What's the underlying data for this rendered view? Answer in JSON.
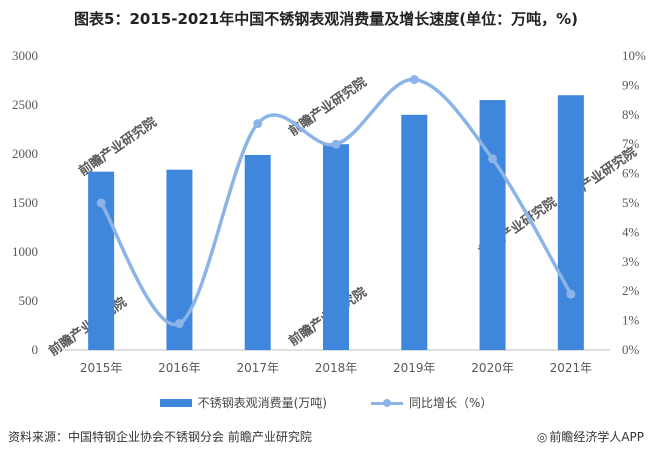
{
  "title": "图表5：2015-2021年中国不锈钢表观消费量及增长速度(单位：万吨，%)",
  "source": "资料来源：中国特钢企业协会不锈钢分会 前瞻产业研究院",
  "credit": "前瞻经济学人APP",
  "watermark": "前瞻产业研究院",
  "chart_data": {
    "type": "bar",
    "categories": [
      "2015年",
      "2016年",
      "2017年",
      "2018年",
      "2019年",
      "2020年",
      "2021年"
    ],
    "series": [
      {
        "name": "不锈钢表观消费量(万吨)",
        "type": "bar",
        "axis": "left",
        "color": "#3f87dd",
        "values": [
          1820,
          1840,
          1990,
          2100,
          2400,
          2550,
          2600
        ]
      },
      {
        "name": "同比增长（%）",
        "type": "line",
        "axis": "right",
        "color": "#8cb4e6",
        "values": [
          5.0,
          0.9,
          7.7,
          7.0,
          9.2,
          6.5,
          1.9
        ]
      }
    ],
    "ylim_left": [
      0,
      3000
    ],
    "yticks_left": [
      "0",
      "500",
      "1000",
      "1500",
      "2000",
      "2500",
      "3000"
    ],
    "ylim_right": [
      0,
      10
    ],
    "yticks_right": [
      "0%",
      "1%",
      "2%",
      "3%",
      "4%",
      "5%",
      "6%",
      "7%",
      "8%",
      "9%",
      "10%"
    ],
    "grid": false,
    "legend_position": "bottom"
  }
}
